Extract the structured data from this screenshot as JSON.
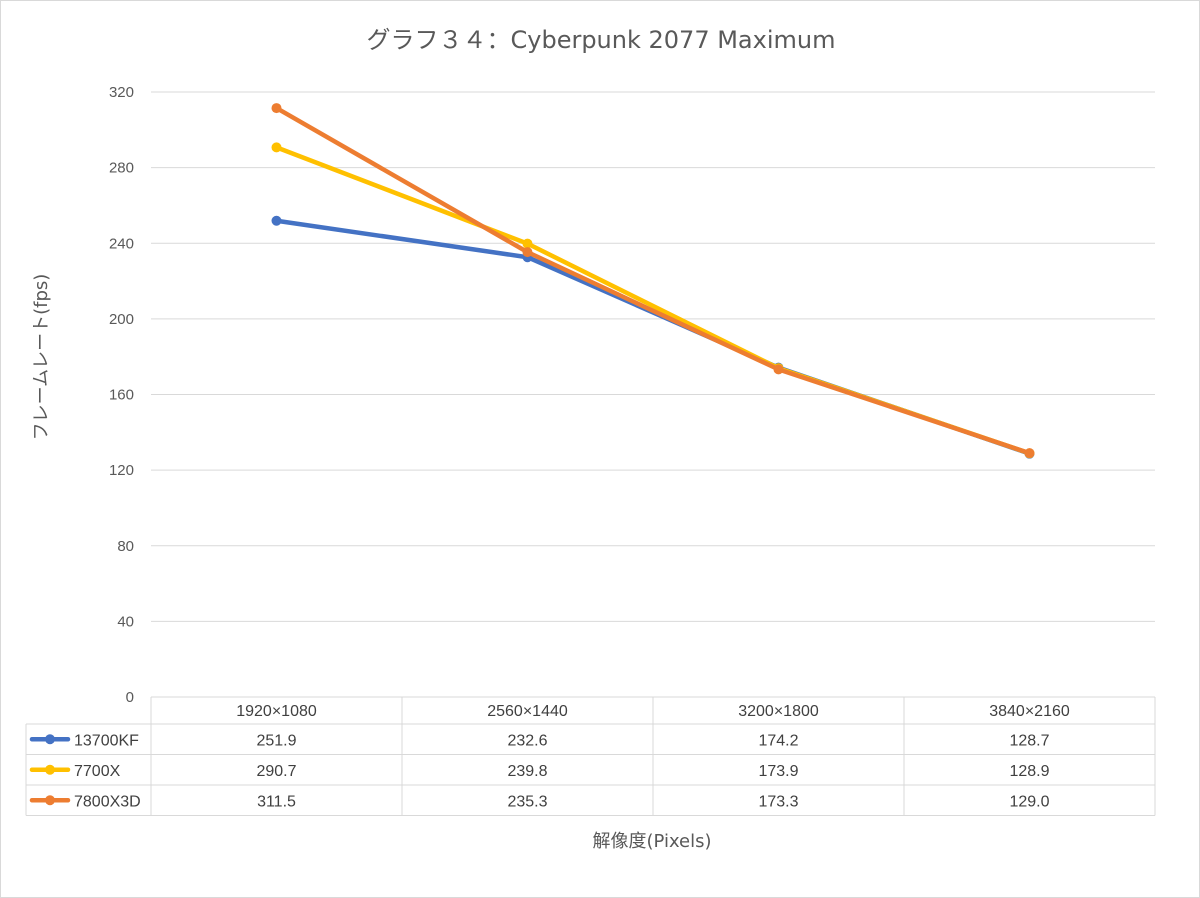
{
  "chart_data": {
    "type": "line",
    "title": "グラフ３４：Cyberpunk 2077 Maximum",
    "xlabel": "解像度(Pixels)",
    "ylabel": "フレームレート(fps)",
    "categories": [
      "1920×1080",
      "2560×1440",
      "3200×1800",
      "3840×2160"
    ],
    "ylim": [
      0,
      320
    ],
    "yticks": [
      "0",
      "40",
      "80",
      "120",
      "160",
      "200",
      "240",
      "280",
      "320"
    ],
    "grid": true,
    "legend": "data-table",
    "series": [
      {
        "name": "13700KF",
        "color": "#4472C4",
        "values": [
          251.9,
          232.6,
          174.2,
          128.7
        ],
        "labels": [
          "251.9",
          "232.6",
          "174.2",
          "128.7"
        ]
      },
      {
        "name": "7700X",
        "color": "#FFC000",
        "values": [
          290.7,
          239.8,
          173.9,
          128.9
        ],
        "labels": [
          "290.7",
          "239.8",
          "173.9",
          "128.9"
        ]
      },
      {
        "name": "7800X3D",
        "color": "#ED7D31",
        "values": [
          311.5,
          235.3,
          173.3,
          129.0
        ],
        "labels": [
          "311.5",
          "235.3",
          "173.3",
          "129.0"
        ]
      }
    ]
  }
}
